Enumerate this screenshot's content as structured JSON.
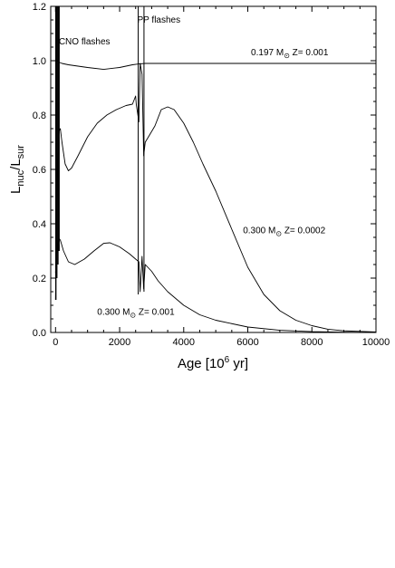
{
  "chart_data": {
    "type": "line",
    "xlabel": "Age [10",
    "xlabel_sup": "6",
    "xlabel_end": " yr]",
    "ylabel": "L",
    "ylabel_sub1": "nuc",
    "ylabel_mid": "/L",
    "ylabel_sub2": "sur",
    "xlim": [
      -150,
      10000
    ],
    "ylim": [
      0.0,
      1.2
    ],
    "x_ticks": [
      0,
      2000,
      4000,
      6000,
      8000,
      10000
    ],
    "x_tick_labels": [
      "0",
      "2000",
      "4000",
      "6000",
      "8000",
      "10000"
    ],
    "y_ticks": [
      0.0,
      0.2,
      0.4,
      0.6,
      0.8,
      1.0,
      1.2
    ],
    "y_tick_labels": [
      "0.0",
      "0.2",
      "0.4",
      "0.6",
      "0.8",
      "1.0",
      "1.2"
    ],
    "grid": false,
    "legend": "none",
    "annotations": [
      {
        "id": "cno",
        "text": "CNO flashes",
        "x": 100,
        "y": 1.06
      },
      {
        "id": "pp",
        "text": "PP flashes",
        "x": 2550,
        "y": 1.14
      },
      {
        "id": "s197",
        "pre": "0.197 M",
        "sym": "⊙",
        "post": "  Z= 0.001",
        "x": 6100,
        "y": 1.02
      },
      {
        "id": "s300a",
        "pre": "0.300 M",
        "sym": "⊙",
        "post": "  Z= 0.0002",
        "x": 5850,
        "y": 0.365
      },
      {
        "id": "s300b",
        "pre": "0.300 M",
        "sym": "⊙",
        "post": "  Z= 0.001",
        "x": 1300,
        "y": 0.065
      }
    ],
    "series": [
      {
        "id": "m197-z001",
        "x": [
          0,
          50,
          100,
          200,
          400,
          700,
          1000,
          1500,
          2000,
          2400,
          2600,
          2800,
          3000,
          3500,
          4000,
          5000,
          6000,
          7000,
          8000,
          9000,
          10000
        ],
        "y": [
          1.0,
          1.0,
          0.995,
          0.99,
          0.985,
          0.98,
          0.975,
          0.968,
          0.975,
          0.985,
          0.988,
          0.99,
          0.99,
          0.99,
          0.99,
          0.99,
          0.99,
          0.99,
          0.99,
          0.99,
          0.99
        ]
      },
      {
        "id": "m300-z0002",
        "x": [
          0,
          50,
          100,
          150,
          200,
          300,
          400,
          500,
          700,
          1000,
          1300,
          1600,
          1900,
          2200,
          2400,
          2500,
          2520,
          2600,
          2640,
          2700,
          2750,
          2800,
          2900,
          3100,
          3300,
          3500,
          3700,
          4000,
          4300,
          4600,
          5000,
          5500,
          6000,
          6500,
          7000,
          7500,
          8000,
          8500,
          9000,
          10000
        ],
        "y": [
          0.12,
          0.6,
          0.74,
          0.75,
          0.7,
          0.62,
          0.595,
          0.605,
          0.65,
          0.72,
          0.77,
          0.8,
          0.82,
          0.835,
          0.84,
          0.87,
          0.84,
          0.775,
          0.99,
          0.95,
          0.65,
          0.7,
          0.72,
          0.76,
          0.82,
          0.83,
          0.82,
          0.77,
          0.7,
          0.62,
          0.52,
          0.38,
          0.24,
          0.14,
          0.08,
          0.045,
          0.025,
          0.012,
          0.006,
          0.002
        ]
      },
      {
        "id": "m300-z001",
        "x": [
          0,
          30,
          80,
          150,
          250,
          400,
          600,
          900,
          1200,
          1500,
          1700,
          2000,
          2300,
          2500,
          2600,
          2640,
          2700,
          2750,
          2800,
          3000,
          3200,
          3500,
          4000,
          4500,
          5000,
          6000,
          7000,
          8000,
          9000,
          10000
        ],
        "y": [
          0.22,
          0.28,
          0.35,
          0.34,
          0.3,
          0.26,
          0.25,
          0.27,
          0.3,
          0.328,
          0.33,
          0.315,
          0.29,
          0.27,
          0.26,
          0.15,
          0.28,
          0.16,
          0.25,
          0.225,
          0.19,
          0.15,
          0.1,
          0.065,
          0.045,
          0.02,
          0.008,
          0.003,
          0.001,
          0.0
        ]
      }
    ],
    "spikes": [
      {
        "id": "cno-burst-1",
        "x": 10,
        "y": [
          0.12,
          1.2
        ]
      },
      {
        "id": "cno-burst-2",
        "x": 40,
        "y": [
          0.2,
          1.2
        ]
      },
      {
        "id": "cno-burst-3",
        "x": 75,
        "y": [
          0.25,
          1.2
        ]
      },
      {
        "id": "cno-burst-4",
        "x": 110,
        "y": [
          0.3,
          1.2
        ]
      },
      {
        "id": "pp-flash-1",
        "x": 2580,
        "y": [
          0.14,
          1.2
        ]
      },
      {
        "id": "pp-flash-2",
        "x": 2760,
        "y": [
          0.15,
          1.2
        ]
      }
    ]
  }
}
